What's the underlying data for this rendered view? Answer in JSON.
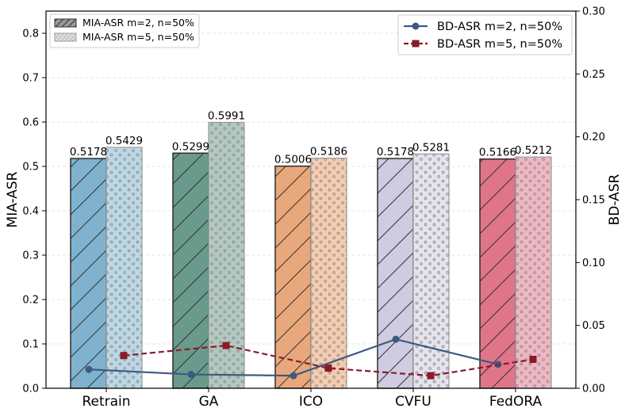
{
  "chart_data": {
    "type": "bar",
    "categories": [
      "Retrain",
      "GA",
      "ICO",
      "CVFU",
      "FedORA"
    ],
    "bar_series": [
      {
        "name": "MIA-ASR m=2, n=50%",
        "values": [
          0.5178,
          0.5299,
          0.5006,
          0.5178,
          0.5166
        ],
        "labels": [
          "0.5178",
          "0.5299",
          "0.5006",
          "0.5178",
          "0.5166"
        ]
      },
      {
        "name": "MIA-ASR m=5, n=50%",
        "values": [
          0.5429,
          0.5991,
          0.5186,
          0.5281,
          0.5212
        ],
        "labels": [
          "0.5429",
          "0.5991",
          "0.5186",
          "0.5281",
          "0.5212"
        ]
      }
    ],
    "line_series": [
      {
        "name": "BD-ASR m=2, n=50%",
        "values": [
          0.015,
          0.011,
          0.01,
          0.039,
          0.019
        ],
        "color": "#3d5a80"
      },
      {
        "name": "BD-ASR m=5, n=50%",
        "values": [
          0.026,
          0.034,
          0.016,
          0.01,
          0.023
        ],
        "color": "#8b1a2b"
      }
    ],
    "bar_colors": {
      "m2": [
        "#7fb2cf",
        "#6a9a8c",
        "#e8a87c",
        "#cfcbe0",
        "#e0758a"
      ],
      "m5": [
        "#bcd8e6",
        "#b2c9c1",
        "#f5ccb0",
        "#e6e3ee",
        "#efb7c3"
      ]
    },
    "ylabel_left": "MIA-ASR",
    "ylabel_right": "BD-ASR",
    "ylim_left": [
      0,
      0.85
    ],
    "ylim_right": [
      0,
      0.3
    ],
    "left_ticks": [
      "0.0",
      "0.1",
      "0.2",
      "0.3",
      "0.4",
      "0.5",
      "0.6",
      "0.7",
      "0.8"
    ],
    "right_ticks": [
      "0.00",
      "0.05",
      "0.10",
      "0.15",
      "0.20",
      "0.25",
      "0.30"
    ],
    "grid": true,
    "legend_bars_position": "top-left",
    "legend_lines_position": "top-right"
  }
}
